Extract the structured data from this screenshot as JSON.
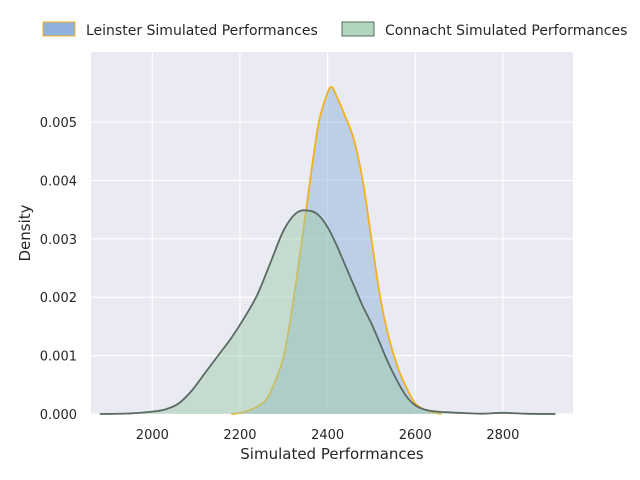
{
  "chart_data": {
    "type": "area",
    "xlabel": "Simulated Performances",
    "ylabel": "Density",
    "xlim": [
      1860,
      2960
    ],
    "ylim": [
      0,
      0.0062
    ],
    "xticks": [
      2000,
      2200,
      2400,
      2600,
      2800
    ],
    "xtick_labels": [
      "2000",
      "2200",
      "2400",
      "2600",
      "2800"
    ],
    "yticks": [
      0.0,
      0.001,
      0.002,
      0.003,
      0.004,
      0.005
    ],
    "ytick_labels": [
      "0.000",
      "0.001",
      "0.002",
      "0.003",
      "0.004",
      "0.005"
    ],
    "grid": true,
    "legend_position": "top",
    "series": [
      {
        "name": "Leinster Simulated Performances",
        "fill": "#8fb1dc",
        "line": "#f0b21d",
        "x": [
          2180,
          2200,
          2220,
          2240,
          2260,
          2280,
          2300,
          2320,
          2340,
          2360,
          2380,
          2400,
          2410,
          2420,
          2440,
          2460,
          2480,
          2500,
          2520,
          2540,
          2560,
          2580,
          2600,
          2620,
          2640,
          2660
        ],
        "y": [
          0.0,
          2e-05,
          6e-05,
          0.00013,
          0.00025,
          0.00055,
          0.001,
          0.00185,
          0.0029,
          0.004,
          0.005,
          0.0055,
          0.0056,
          0.00545,
          0.0051,
          0.0047,
          0.004,
          0.003,
          0.002,
          0.0013,
          0.0008,
          0.00045,
          0.00018,
          8e-05,
          3e-05,
          0.0
        ]
      },
      {
        "name": "Connacht Simulated Performances",
        "fill": "#9fcbac",
        "line": "#5a6a62",
        "x": [
          1880,
          1950,
          2000,
          2030,
          2060,
          2090,
          2120,
          2150,
          2180,
          2210,
          2240,
          2270,
          2300,
          2330,
          2360,
          2380,
          2400,
          2420,
          2440,
          2460,
          2480,
          2500,
          2520,
          2540,
          2560,
          2580,
          2600,
          2620,
          2650,
          2700,
          2750,
          2800,
          2850,
          2920
        ],
        "y": [
          0.0,
          1e-05,
          4e-05,
          8e-05,
          0.00018,
          0.0004,
          0.0007,
          0.001,
          0.0013,
          0.00165,
          0.00205,
          0.0026,
          0.00315,
          0.00345,
          0.00348,
          0.0034,
          0.0032,
          0.0029,
          0.00255,
          0.0022,
          0.00185,
          0.00155,
          0.0012,
          0.00085,
          0.00055,
          0.0003,
          0.00015,
          8e-05,
          4e-05,
          2e-05,
          5e-06,
          2e-05,
          5e-06,
          0.0
        ]
      }
    ]
  }
}
